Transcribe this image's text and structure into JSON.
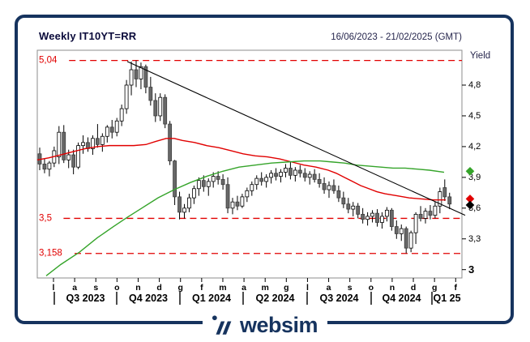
{
  "header": {
    "title": "Weekly IT10YT=RR",
    "date_range": "16/06/2023 - 21/02/2025 (GMT)"
  },
  "axis": {
    "y_label": "Yield",
    "y_ticks": [
      {
        "label": "4,8",
        "value": 4.8
      },
      {
        "label": "4,5",
        "value": 4.5
      },
      {
        "label": "4,2",
        "value": 4.2
      },
      {
        "label": "3,9",
        "value": 3.9
      },
      {
        "label": "3,6",
        "value": 3.6
      },
      {
        "label": "3,3",
        "value": 3.3
      },
      {
        "label": "3",
        "value": 3.0,
        "bold": true
      }
    ],
    "months": [
      "l",
      "a",
      "s",
      "o",
      "n",
      "d",
      "g",
      "f",
      "m",
      "a",
      "m",
      "g",
      "l",
      "a",
      "s",
      "o",
      "n",
      "d",
      "g",
      "f"
    ],
    "quarters": [
      "Q3 2023",
      "Q4 2023",
      "Q1 2024",
      "Q2 2024",
      "Q3 2024",
      "Q4 2024",
      "Q1 25"
    ]
  },
  "levels": [
    {
      "label": "5,04",
      "value": 5.04
    },
    {
      "label": "3,5",
      "value": 3.5
    },
    {
      "label": "3,158",
      "value": 3.158
    }
  ],
  "markers": [
    {
      "name": "green-ma-last",
      "color": "#35a42a",
      "value": 3.96
    },
    {
      "name": "red-ma-last",
      "color": "#e10000",
      "value": 3.69
    },
    {
      "name": "last-close",
      "color": "#000000",
      "value": 3.63
    }
  ],
  "colors": {
    "navy": "#16335e",
    "red": "#e10000",
    "green": "#35a42a",
    "candle_down": "#686868",
    "candle_up": "#ffffff",
    "trend": "#000000",
    "frame": "#8c8c8c"
  },
  "footer": {
    "brand": "websim"
  },
  "chart_data": {
    "type": "candlestick",
    "title": "Weekly IT10YT=RR",
    "interval": "weekly",
    "ylabel": "Yield",
    "ylim": [
      2.92,
      5.14
    ],
    "x_range": [
      "16/06/2023",
      "21/02/2025"
    ],
    "support_resistance": [
      5.04,
      3.5,
      3.158
    ],
    "candles": [
      [
        4.13,
        4.19,
        3.97,
        4.03
      ],
      [
        4.03,
        4.08,
        3.94,
        3.98
      ],
      [
        3.98,
        4.06,
        3.91,
        4.04
      ],
      [
        4.04,
        4.2,
        4.0,
        4.16
      ],
      [
        4.1,
        4.4,
        4.03,
        4.34
      ],
      [
        4.34,
        4.41,
        4.04,
        4.07
      ],
      [
        4.07,
        4.17,
        3.99,
        4.12
      ],
      [
        4.12,
        4.17,
        3.93,
        4.0
      ],
      [
        4.0,
        4.24,
        3.98,
        4.21
      ],
      [
        4.21,
        4.31,
        4.13,
        4.24
      ],
      [
        4.24,
        4.29,
        4.15,
        4.18
      ],
      [
        4.18,
        4.31,
        4.12,
        4.28
      ],
      [
        4.28,
        4.42,
        4.19,
        4.22
      ],
      [
        4.22,
        4.33,
        4.15,
        4.3
      ],
      [
        4.3,
        4.41,
        4.24,
        4.39
      ],
      [
        4.39,
        4.46,
        4.28,
        4.34
      ],
      [
        4.34,
        4.48,
        4.3,
        4.45
      ],
      [
        4.45,
        4.61,
        4.4,
        4.57
      ],
      [
        4.57,
        4.85,
        4.52,
        4.8
      ],
      [
        4.8,
        5.03,
        4.7,
        4.95
      ],
      [
        4.95,
        5.04,
        4.78,
        4.86
      ],
      [
        4.86,
        5.02,
        4.76,
        4.98
      ],
      [
        4.98,
        5.0,
        4.72,
        4.78
      ],
      [
        4.78,
        4.88,
        4.6,
        4.65
      ],
      [
        4.65,
        4.72,
        4.44,
        4.5
      ],
      [
        4.5,
        4.72,
        4.45,
        4.68
      ],
      [
        4.68,
        4.71,
        4.38,
        4.42
      ],
      [
        4.42,
        4.45,
        4.02,
        4.06
      ],
      [
        4.06,
        4.07,
        3.63,
        3.71
      ],
      [
        3.71,
        3.76,
        3.49,
        3.56
      ],
      [
        3.56,
        3.64,
        3.5,
        3.6
      ],
      [
        3.6,
        3.74,
        3.56,
        3.7
      ],
      [
        3.7,
        3.82,
        3.64,
        3.79
      ],
      [
        3.79,
        3.9,
        3.72,
        3.87
      ],
      [
        3.87,
        3.92,
        3.76,
        3.81
      ],
      [
        3.81,
        3.89,
        3.72,
        3.86
      ],
      [
        3.86,
        3.95,
        3.8,
        3.91
      ],
      [
        3.91,
        3.96,
        3.83,
        3.88
      ],
      [
        3.88,
        3.93,
        3.78,
        3.83
      ],
      [
        3.83,
        3.9,
        3.55,
        3.6
      ],
      [
        3.6,
        3.7,
        3.54,
        3.66
      ],
      [
        3.66,
        3.72,
        3.58,
        3.62
      ],
      [
        3.62,
        3.74,
        3.6,
        3.71
      ],
      [
        3.71,
        3.8,
        3.66,
        3.77
      ],
      [
        3.77,
        3.86,
        3.72,
        3.83
      ],
      [
        3.83,
        3.92,
        3.78,
        3.89
      ],
      [
        3.89,
        3.95,
        3.82,
        3.86
      ],
      [
        3.86,
        3.93,
        3.8,
        3.9
      ],
      [
        3.9,
        3.97,
        3.84,
        3.94
      ],
      [
        3.94,
        3.99,
        3.87,
        3.91
      ],
      [
        3.91,
        3.98,
        3.85,
        3.95
      ],
      [
        3.95,
        4.03,
        3.9,
        3.99
      ],
      [
        3.99,
        4.05,
        3.88,
        3.92
      ],
      [
        3.92,
        4.0,
        3.86,
        3.97
      ],
      [
        3.97,
        4.02,
        3.9,
        3.94
      ],
      [
        3.94,
        3.99,
        3.86,
        3.9
      ],
      [
        3.9,
        3.96,
        3.83,
        3.93
      ],
      [
        3.93,
        3.98,
        3.85,
        3.88
      ],
      [
        3.88,
        3.94,
        3.8,
        3.84
      ],
      [
        3.84,
        3.9,
        3.74,
        3.78
      ],
      [
        3.78,
        3.86,
        3.7,
        3.82
      ],
      [
        3.82,
        3.88,
        3.74,
        3.77
      ],
      [
        3.77,
        3.82,
        3.66,
        3.7
      ],
      [
        3.7,
        3.76,
        3.6,
        3.64
      ],
      [
        3.64,
        3.7,
        3.55,
        3.59
      ],
      [
        3.59,
        3.66,
        3.52,
        3.62
      ],
      [
        3.62,
        3.65,
        3.5,
        3.54
      ],
      [
        3.54,
        3.6,
        3.45,
        3.49
      ],
      [
        3.49,
        3.56,
        3.43,
        3.52
      ],
      [
        3.52,
        3.58,
        3.46,
        3.55
      ],
      [
        3.55,
        3.59,
        3.42,
        3.46
      ],
      [
        3.46,
        3.56,
        3.4,
        3.52
      ],
      [
        3.52,
        3.61,
        3.47,
        3.58
      ],
      [
        3.58,
        3.6,
        3.38,
        3.42
      ],
      [
        3.42,
        3.48,
        3.3,
        3.35
      ],
      [
        3.35,
        3.44,
        3.28,
        3.4
      ],
      [
        3.4,
        3.42,
        3.16,
        3.21
      ],
      [
        3.21,
        3.38,
        3.17,
        3.36
      ],
      [
        3.36,
        3.56,
        3.25,
        3.54
      ],
      [
        3.54,
        3.62,
        3.47,
        3.5
      ],
      [
        3.5,
        3.6,
        3.45,
        3.57
      ],
      [
        3.57,
        3.63,
        3.49,
        3.53
      ],
      [
        3.53,
        3.66,
        3.5,
        3.62
      ],
      [
        3.62,
        3.8,
        3.55,
        3.76
      ],
      [
        3.8,
        3.88,
        3.67,
        3.71
      ],
      [
        3.71,
        3.75,
        3.59,
        3.64
      ]
    ],
    "series": [
      {
        "name": "ma-short-red",
        "color": "#e10000",
        "points": [
          [
            46,
            4.07
          ],
          [
            60,
            4.09
          ],
          [
            75,
            4.12
          ],
          [
            90,
            4.15
          ],
          [
            105,
            4.18
          ],
          [
            120,
            4.2
          ],
          [
            135,
            4.21
          ],
          [
            150,
            4.21
          ],
          [
            165,
            4.21
          ],
          [
            180,
            4.22
          ],
          [
            192,
            4.25
          ],
          [
            205,
            4.28
          ],
          [
            215,
            4.28
          ],
          [
            225,
            4.26
          ],
          [
            240,
            4.24
          ],
          [
            255,
            4.21
          ],
          [
            270,
            4.19
          ],
          [
            285,
            4.16
          ],
          [
            300,
            4.13
          ],
          [
            315,
            4.11
          ],
          [
            330,
            4.1
          ],
          [
            345,
            4.08
          ],
          [
            360,
            4.05
          ],
          [
            375,
            4.02
          ],
          [
            390,
            4.0
          ],
          [
            405,
            3.97
          ],
          [
            415,
            3.94
          ],
          [
            425,
            3.9
          ],
          [
            435,
            3.86
          ],
          [
            445,
            3.82
          ],
          [
            455,
            3.79
          ],
          [
            465,
            3.76
          ],
          [
            475,
            3.74
          ],
          [
            490,
            3.72
          ],
          [
            505,
            3.7
          ],
          [
            520,
            3.69
          ],
          [
            535,
            3.68
          ],
          [
            550,
            3.68
          ]
        ]
      },
      {
        "name": "ma-long-green",
        "color": "#35a42a",
        "points": [
          [
            57,
            2.94
          ],
          [
            75,
            3.05
          ],
          [
            98,
            3.17
          ],
          [
            120,
            3.31
          ],
          [
            140,
            3.42
          ],
          [
            157,
            3.51
          ],
          [
            175,
            3.6
          ],
          [
            195,
            3.7
          ],
          [
            215,
            3.78
          ],
          [
            235,
            3.85
          ],
          [
            255,
            3.91
          ],
          [
            275,
            3.96
          ],
          [
            295,
            4.0
          ],
          [
            315,
            4.02
          ],
          [
            335,
            4.04
          ],
          [
            355,
            4.05
          ],
          [
            375,
            4.06
          ],
          [
            395,
            4.06
          ],
          [
            410,
            4.05
          ],
          [
            425,
            4.04
          ],
          [
            440,
            4.02
          ],
          [
            455,
            4.01
          ],
          [
            470,
            4.0
          ],
          [
            485,
            3.99
          ],
          [
            500,
            3.99
          ],
          [
            515,
            3.98
          ],
          [
            530,
            3.97
          ],
          [
            548,
            3.95
          ]
        ]
      },
      {
        "name": "downtrend-line",
        "color": "#000000",
        "points": [
          [
            157,
            5.03
          ],
          [
            574,
            3.53
          ]
        ]
      }
    ]
  }
}
